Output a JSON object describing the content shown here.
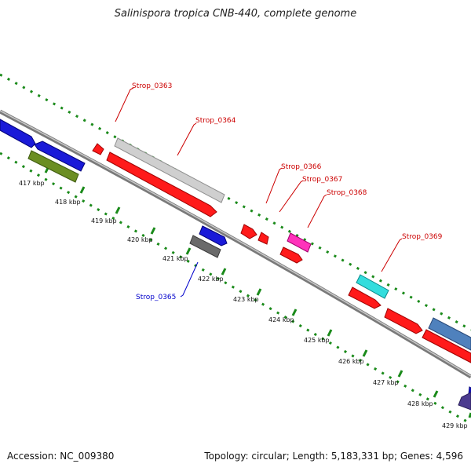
{
  "title": "Salinispora tropica CNB-440, complete genome",
  "footer": {
    "accession": "Accession: NC_009380",
    "summary": "Topology: circular; Length: 5,183,331 bp; Genes: 4,596"
  },
  "colors": {
    "backbone": "#888888",
    "dotted_track": "#1a8a1a",
    "label_red": "#cc0000",
    "label_blue": "#0000cc"
  },
  "ticks": [
    {
      "label": "417 kbp"
    },
    {
      "label": "418 kbp"
    },
    {
      "label": "419 kbp"
    },
    {
      "label": "420 kbp"
    },
    {
      "label": "421 kbp"
    },
    {
      "label": "422 kbp"
    },
    {
      "label": "423 kbp"
    },
    {
      "label": "424 kbp"
    },
    {
      "label": "425 kbp"
    },
    {
      "label": "426 kbp"
    },
    {
      "label": "427 kbp"
    },
    {
      "label": "428 kbp"
    },
    {
      "label": "429 kbp"
    }
  ],
  "gene_labels": [
    {
      "name": "Strop_0363",
      "color": "#cc0000"
    },
    {
      "name": "Strop_0364",
      "color": "#cc0000"
    },
    {
      "name": "Strop_0365",
      "color": "#0000cc"
    },
    {
      "name": "Strop_0366",
      "color": "#cc0000"
    },
    {
      "name": "Strop_0367",
      "color": "#cc0000"
    },
    {
      "name": "Strop_0368",
      "color": "#cc0000"
    },
    {
      "name": "Strop_0369",
      "color": "#cc0000"
    }
  ]
}
